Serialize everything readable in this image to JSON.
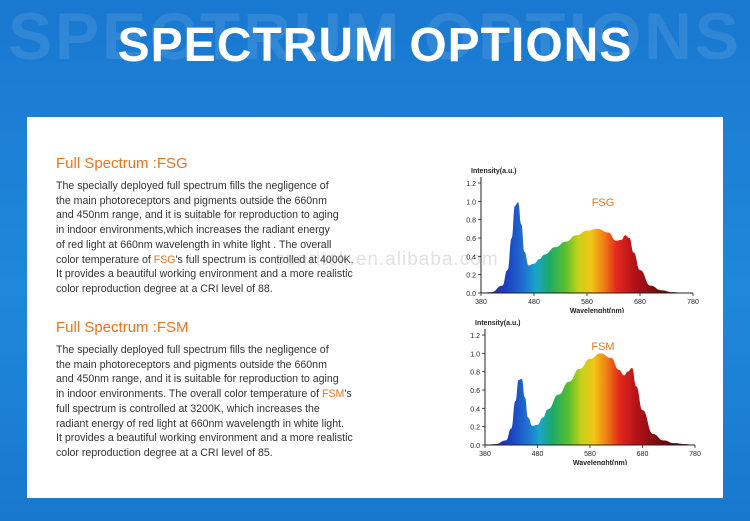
{
  "page": {
    "ghost_title": "SPECTRUM OPTIONS",
    "title": "SPECTRUM OPTIONS",
    "watermark": "sunritek.en.alibaba.com"
  },
  "sections": [
    {
      "title": "Full Spectrum :FSG",
      "lines": [
        {
          "a": "The specially deployed full spectrum  fills the negligence of"
        },
        {
          "a": "the main photoreceptors and pigments outside the 660nm"
        },
        {
          "a": "and 450nm range, and it is suitable for reproduction to aging"
        },
        {
          "a": "in indoor environments,which increases the radiant energy"
        },
        {
          "a": "of red light at 660nm wavelength in white light . The overall"
        },
        {
          "a": "color temperature of ",
          "hl": "FSG",
          "b": "'s full spectrum is controlled at 4000K."
        },
        {
          "a": "It provides a beautiful working environment and a more realistic"
        },
        {
          "a": "color reproduction degree at a CRI level of 88."
        }
      ]
    },
    {
      "title": "Full Spectrum :FSM",
      "lines": [
        {
          "a": "The specially deployed full  spectrum fills the negligence of"
        },
        {
          "a": "the main photoreceptors and pigments outside the 660nm"
        },
        {
          "a": "and 450nm range, and it is suitable for reproduction to aging"
        },
        {
          "a": "in indoor environments. The overall color temperature of ",
          "hl": "FSM",
          "b": "'s"
        },
        {
          "a": "full spectrum is controlled at 3200K, which increases the"
        },
        {
          "a": "radiant energy of red light at 660nm wavelength in white light."
        },
        {
          "a": "It provides a beautiful working environment and a more realistic"
        },
        {
          "a": "color reproduction degree at a CRI level of 85."
        }
      ]
    }
  ],
  "chart_data": [
    {
      "type": "area",
      "title": "FSG",
      "ylabel": "Intensity(a.u.)",
      "xlabel": "Wavelenght(nm)",
      "xlim": [
        380,
        780
      ],
      "ylim": [
        0,
        1.2
      ],
      "x_ticks": [
        380,
        480,
        580,
        680,
        780
      ],
      "x_tick_labels": [
        "380",
        "480",
        "580",
        "680",
        "780"
      ],
      "y_ticks": [
        0,
        0.2,
        0.4,
        0.6,
        0.8,
        1.0,
        1.2
      ],
      "y_tick_labels": [
        "0.0",
        "0.2",
        "0.4",
        "0.6",
        "0.8",
        "1.0",
        "1.2"
      ],
      "grid": false,
      "x": [
        380,
        400,
        420,
        430,
        438,
        444,
        450,
        456,
        462,
        470,
        480,
        490,
        500,
        520,
        540,
        560,
        580,
        600,
        620,
        635,
        645,
        652,
        660,
        668,
        680,
        700,
        720,
        740,
        760,
        780
      ],
      "y": [
        0.0,
        0.01,
        0.08,
        0.25,
        0.6,
        0.95,
        0.99,
        0.75,
        0.45,
        0.3,
        0.32,
        0.37,
        0.42,
        0.5,
        0.56,
        0.63,
        0.68,
        0.7,
        0.66,
        0.57,
        0.58,
        0.63,
        0.6,
        0.44,
        0.25,
        0.08,
        0.03,
        0.01,
        0.005,
        0.0
      ]
    },
    {
      "type": "area",
      "title": "FSM",
      "ylabel": "Intensity(a.u.)",
      "xlabel": "Wavelenght(nm)",
      "xlim": [
        380,
        780
      ],
      "ylim": [
        0,
        1.2
      ],
      "x_ticks": [
        380,
        480,
        580,
        680,
        780
      ],
      "x_tick_labels": [
        "380",
        "480",
        "580",
        "680",
        "780"
      ],
      "y_ticks": [
        0,
        0.2,
        0.4,
        0.6,
        0.8,
        1.0,
        1.2
      ],
      "y_tick_labels": [
        "0.0",
        "0.2",
        "0.4",
        "0.6",
        "0.8",
        "1.0",
        "1.2"
      ],
      "grid": false,
      "x": [
        380,
        400,
        420,
        430,
        438,
        444,
        450,
        456,
        462,
        470,
        480,
        490,
        500,
        520,
        540,
        560,
        580,
        600,
        620,
        635,
        645,
        652,
        660,
        668,
        680,
        700,
        720,
        740,
        760,
        780
      ],
      "y": [
        0.0,
        0.01,
        0.05,
        0.18,
        0.48,
        0.71,
        0.72,
        0.52,
        0.3,
        0.21,
        0.22,
        0.3,
        0.39,
        0.55,
        0.69,
        0.83,
        0.94,
        1.0,
        0.95,
        0.82,
        0.76,
        0.8,
        0.84,
        0.64,
        0.38,
        0.12,
        0.05,
        0.02,
        0.01,
        0.0
      ]
    }
  ]
}
